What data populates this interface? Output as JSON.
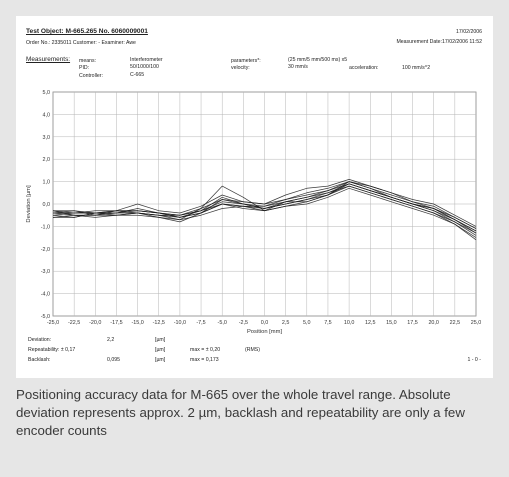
{
  "report": {
    "test_object": "Test Object: M-665.265 No. 6060009001",
    "order_line": "Order No.: 2335011   Customer: -   Examiner: Awe",
    "date": "17/02/2006",
    "measurement_date": "Measurement Date:17/02/2006 11:52",
    "measurements_label": "Measurements:",
    "means_label": "means:",
    "means_value": "Interferometer",
    "pid_label": "PID:",
    "pid_value": "50/1000/100",
    "controller_label": "Controller:",
    "controller_value": "C-665",
    "parameters_label": "parameters*:",
    "parameters_value": "(25 mm/5 mm/500 ms) x5",
    "velocity_label": "velocity:",
    "velocity_value": "30 mm/s",
    "acceleration_label": "acceleration:",
    "acceleration_value": "100 mm/s^2",
    "deviation_label": "Deviation:",
    "deviation_value": "2,2",
    "deviation_unit": "[µm]",
    "repeatability_label": "Repeatability: ± 0,17",
    "repeatability_unit": "[µm]",
    "repeatability_max": "max = ± 0,20",
    "repeatability_rms": "(RMS)",
    "backlash_label": "Backlash:",
    "backlash_value": "0,095",
    "backlash_unit": "[µm]",
    "backlash_max": "max =    0,173",
    "page": "1 - 0 -"
  },
  "caption": "Positioning accuracy data for M-665 over the whole travel range. Absolute deviation represents approx. 2 µm, backlash and repeatability are only a few encoder counts",
  "colors": {
    "background": "#e6e6e6",
    "line": "#1a1a1a",
    "grid": "#b5b5b5"
  },
  "chart_data": {
    "type": "line",
    "title": "",
    "xlabel": "Position [mm]",
    "ylabel": "Deviation [µm]",
    "xlim": [
      -25,
      25
    ],
    "ylim": [
      -5,
      5
    ],
    "grid": true,
    "x_ticks": [
      "-25,0",
      "-22,5",
      "-20,0",
      "-17,5",
      "-15,0",
      "-12,5",
      "-10,0",
      "-7,5",
      "-5,0",
      "-2,5",
      "0,0",
      "2,5",
      "5,0",
      "7,5",
      "10,0",
      "12,5",
      "15,0",
      "17,5",
      "20,0",
      "22,5",
      "25,0"
    ],
    "y_ticks": [
      "5,0",
      "4,0",
      "3,0",
      "2,0",
      "1,0",
      "0,0",
      "-1,0",
      "-2,0",
      "-3,0",
      "-4,0",
      "-5,0"
    ],
    "x": [
      -25,
      -22.5,
      -20,
      -17.5,
      -15,
      -12.5,
      -10,
      -7.5,
      -5,
      -2.5,
      0,
      2.5,
      5,
      7.5,
      10,
      12.5,
      15,
      17.5,
      20,
      22.5,
      25
    ],
    "series": [
      {
        "values": [
          -0.3,
          -0.4,
          -0.4,
          -0.3,
          -0.4,
          -0.5,
          -0.5,
          -0.3,
          0.0,
          -0.1,
          -0.1,
          0.1,
          0.3,
          0.6,
          0.9,
          0.6,
          0.3,
          0.0,
          -0.2,
          -0.7,
          -1.2
        ]
      },
      {
        "values": [
          -0.4,
          -0.5,
          -0.5,
          -0.4,
          -0.3,
          -0.4,
          -0.6,
          -0.4,
          0.2,
          0.0,
          -0.2,
          0.0,
          0.2,
          0.5,
          0.8,
          0.5,
          0.2,
          -0.1,
          -0.4,
          -0.8,
          -1.3
        ]
      },
      {
        "values": [
          -0.6,
          -0.6,
          -0.4,
          -0.4,
          -0.4,
          -0.5,
          -0.7,
          -0.2,
          0.8,
          0.3,
          -0.3,
          0.1,
          0.1,
          0.4,
          1.0,
          0.7,
          0.4,
          0.1,
          -0.2,
          -0.6,
          -1.1
        ]
      },
      {
        "values": [
          -0.3,
          -0.5,
          -0.6,
          -0.5,
          -0.4,
          -0.6,
          -0.7,
          -0.5,
          -0.2,
          -0.1,
          -0.3,
          -0.1,
          0.1,
          0.4,
          0.9,
          0.6,
          0.3,
          0.0,
          -0.3,
          -0.8,
          -1.4
        ]
      },
      {
        "values": [
          -0.5,
          -0.4,
          -0.3,
          -0.3,
          0.0,
          -0.3,
          -0.4,
          -0.1,
          0.4,
          0.1,
          0.0,
          0.4,
          0.7,
          0.8,
          1.1,
          0.8,
          0.5,
          0.2,
          0.0,
          -0.5,
          -1.0
        ]
      },
      {
        "values": [
          -0.4,
          -0.3,
          -0.4,
          -0.4,
          -0.2,
          -0.4,
          -0.5,
          -0.3,
          0.1,
          0.0,
          -0.1,
          0.2,
          0.4,
          0.6,
          1.0,
          0.7,
          0.3,
          0.0,
          -0.3,
          -0.7,
          -1.2
        ]
      },
      {
        "values": [
          -0.6,
          -0.5,
          -0.5,
          -0.5,
          -0.5,
          -0.6,
          -0.8,
          -0.4,
          0.0,
          -0.2,
          -0.3,
          -0.1,
          0.0,
          0.3,
          0.7,
          0.4,
          0.1,
          -0.2,
          -0.5,
          -0.9,
          -1.5
        ]
      },
      {
        "values": [
          -0.3,
          -0.3,
          -0.5,
          -0.3,
          -0.3,
          -0.4,
          -0.5,
          -0.2,
          0.2,
          0.1,
          0.0,
          0.2,
          0.5,
          0.7,
          1.0,
          0.8,
          0.5,
          0.1,
          -0.1,
          -0.6,
          -1.1
        ]
      },
      {
        "values": [
          -0.5,
          -0.6,
          -0.4,
          -0.5,
          -0.4,
          -0.5,
          -0.6,
          -0.4,
          0.0,
          -0.1,
          -0.2,
          0.0,
          0.2,
          0.4,
          0.8,
          0.5,
          0.2,
          -0.1,
          -0.4,
          -0.9,
          -1.6
        ]
      },
      {
        "values": [
          -0.4,
          -0.4,
          -0.4,
          -0.3,
          -0.3,
          -0.4,
          -0.6,
          -0.3,
          0.3,
          0.0,
          -0.2,
          0.1,
          0.3,
          0.5,
          0.9,
          0.6,
          0.3,
          0.0,
          -0.2,
          -0.7,
          -1.3
        ]
      }
    ]
  }
}
